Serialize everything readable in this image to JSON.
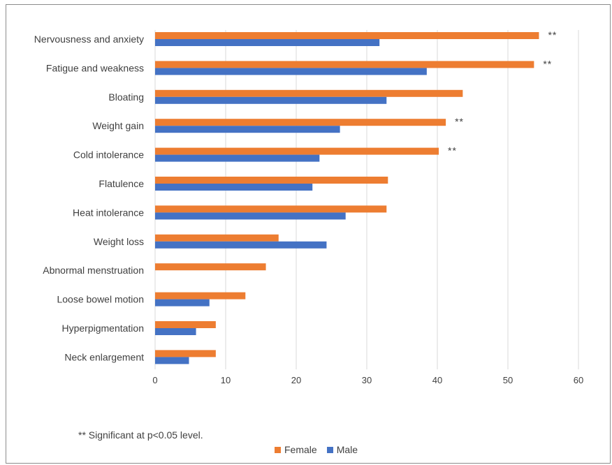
{
  "chart_data": {
    "type": "bar",
    "orientation": "horizontal",
    "categories": [
      "Nervousness and anxiety",
      "Fatigue and weakness",
      "Bloating",
      "Weight gain",
      "Cold intolerance",
      "Flatulence",
      "Heat intolerance",
      "Weight loss",
      "Abnormal menstruation",
      "Loose bowel motion",
      "Hyperpigmentation",
      "Neck enlargement"
    ],
    "series": [
      {
        "name": "Female",
        "color": "#ED7D31",
        "values": [
          54.4,
          53.7,
          43.6,
          41.2,
          40.2,
          33.0,
          32.8,
          17.5,
          15.7,
          12.8,
          8.6,
          8.6
        ]
      },
      {
        "name": "Male",
        "color": "#4472C4",
        "values": [
          31.8,
          38.5,
          32.8,
          26.2,
          23.3,
          22.3,
          27.0,
          24.3,
          0,
          7.7,
          5.8,
          4.8
        ]
      }
    ],
    "significance": [
      "**",
      "**",
      "",
      "**",
      "**",
      "",
      "",
      "",
      "",
      "",
      "",
      ""
    ],
    "xlim": [
      0,
      60
    ],
    "xticks": [
      "0",
      "10",
      "20",
      "30",
      "40",
      "50",
      "60"
    ],
    "grid": true,
    "legend_position": "bottom"
  },
  "footnote": "** Significant at p<0.05 level.",
  "legend": {
    "female": "Female",
    "male": "Male"
  }
}
